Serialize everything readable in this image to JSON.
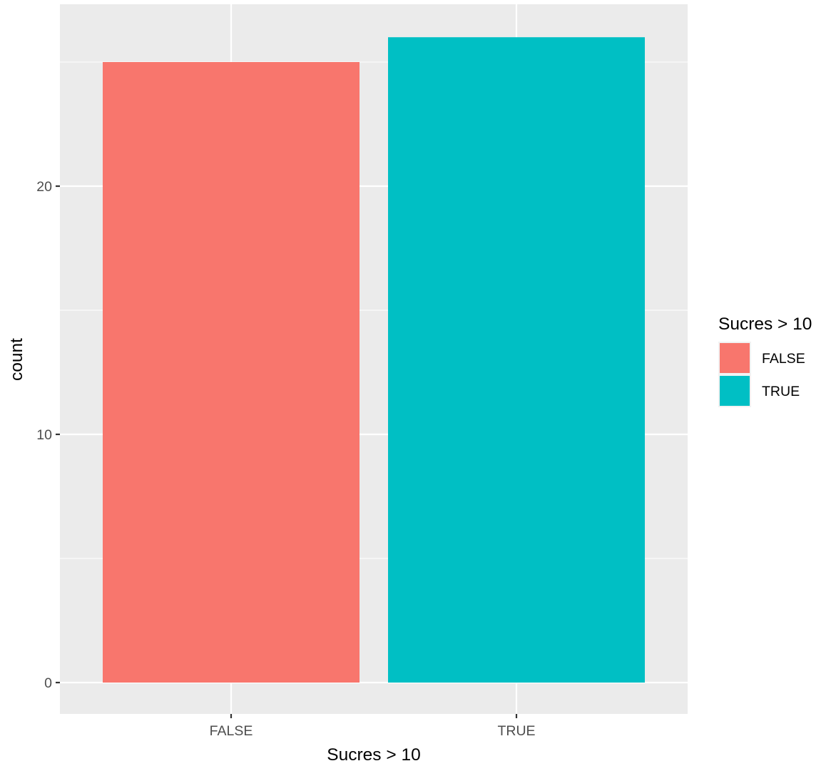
{
  "chart_data": {
    "type": "bar",
    "title": "",
    "xlabel": "Sucres > 10",
    "ylabel": "count",
    "categories": [
      "FALSE",
      "TRUE"
    ],
    "values": [
      25,
      26
    ],
    "colors": [
      "#F8766D",
      "#00BFC4"
    ],
    "ylim": [
      -1.3,
      27.3
    ],
    "y_ticks": [
      0,
      10,
      20
    ],
    "y_minor_ticks": [
      5,
      15,
      25
    ],
    "grid": true,
    "legend": {
      "title": "Sucres > 10",
      "placement": "right",
      "entries": [
        {
          "label": "FALSE",
          "color": "#F8766D"
        },
        {
          "label": "TRUE",
          "color": "#00BFC4"
        }
      ]
    }
  }
}
